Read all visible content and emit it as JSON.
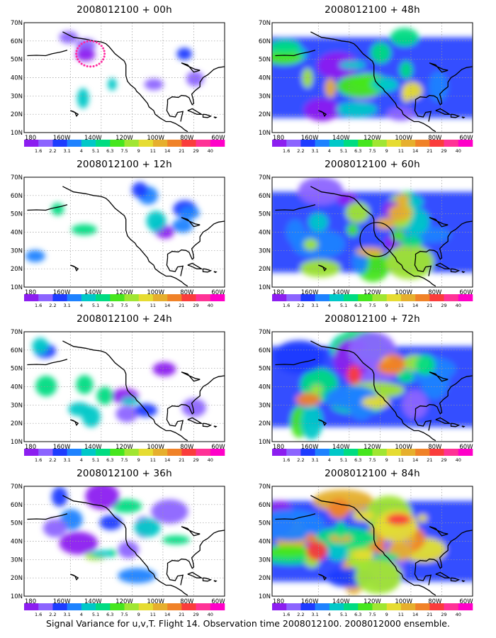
{
  "caption": "Signal Variance for u,v,T. Flight 14. Observation time 2008012100. 2008012000 ensemble.",
  "lat_ticks": [
    "70N",
    "60N",
    "50N",
    "40N",
    "30N",
    "20N",
    "10N"
  ],
  "lon_ticks": [
    "180",
    "160W",
    "140W",
    "120W",
    "100W",
    "80W",
    "60W"
  ],
  "colorbar_labels": [
    "1.6",
    "2.2",
    "3.1",
    "4",
    "5.1",
    "6.3",
    "7.5",
    "9",
    "11",
    "14",
    "21",
    "29",
    "40"
  ],
  "colorbar_colors": [
    "#8c1ef0",
    "#8c64ff",
    "#1e3cff",
    "#1e82ff",
    "#00c8c8",
    "#00dc82",
    "#46e61e",
    "#a0e632",
    "#e6dc32",
    "#e6af2d",
    "#f08228",
    "#fa3c3c",
    "#ff3296",
    "#ff00c8"
  ],
  "panels": [
    {
      "title": "2008012100 + 00h",
      "intensity": 0.5,
      "markers": "dots"
    },
    {
      "title": "2008012100 + 48h",
      "intensity": 2.5,
      "markers": "none"
    },
    {
      "title": "2008012100 + 12h",
      "intensity": 0.9,
      "markers": "none"
    },
    {
      "title": "2008012100 + 60h",
      "intensity": 3.0,
      "markers": "circle"
    },
    {
      "title": "2008012100 + 24h",
      "intensity": 1.3,
      "markers": "none"
    },
    {
      "title": "2008012100 + 72h",
      "intensity": 3.6,
      "markers": "none"
    },
    {
      "title": "2008012100 + 36h",
      "intensity": 1.8,
      "markers": "none"
    },
    {
      "title": "2008012100 + 84h",
      "intensity": 4.2,
      "markers": "none"
    }
  ]
}
